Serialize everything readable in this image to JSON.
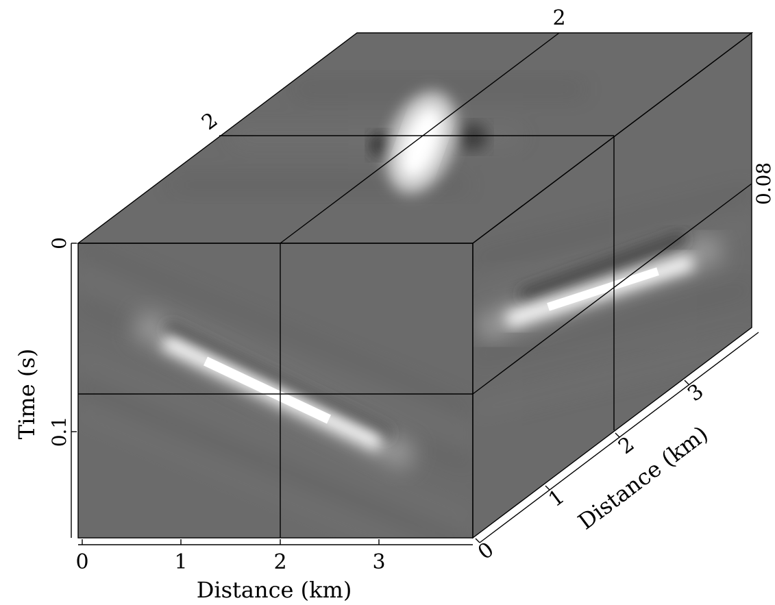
{
  "chart_data": {
    "type": "heatmap",
    "subtype": "3d-cube-slices",
    "colormap": "grayscale",
    "background_color": "#6b6b6b",
    "frame_color": "#000000",
    "axes": {
      "time": {
        "label": "Time (s)",
        "ticks": [
          "0",
          "0.1"
        ],
        "tick_values": [
          0,
          0.1
        ],
        "range": [
          0,
          0.15
        ]
      },
      "distance_front": {
        "label": "Distance (km)",
        "ticks": [
          "0",
          "1",
          "2",
          "3"
        ],
        "tick_values": [
          0,
          1,
          2,
          3
        ],
        "range": [
          0,
          4
        ]
      },
      "distance_depth": {
        "label": "Distance (km)",
        "ticks": [
          "0",
          "1",
          "2",
          "3"
        ],
        "tick_values": [
          0,
          1,
          2,
          3
        ],
        "range": [
          0,
          4
        ]
      }
    },
    "slice_positions": {
      "time_label": "0.08",
      "time_value": 0.08,
      "distance_front_label": "2",
      "distance_front_value": 2,
      "distance_depth_label": "2",
      "distance_depth_value": 2
    },
    "events": [
      {
        "face": "front",
        "description": "dipping event",
        "x_km": [
          0.9,
          3.5
        ],
        "t_s": [
          0.045,
          0.115
        ],
        "peak_amplitude": 1.0
      },
      {
        "face": "side",
        "description": "dipping event",
        "y_km": [
          0.0,
          4.0
        ],
        "t_s": [
          0.09,
          0.02
        ],
        "peak_amplitude": 1.0
      },
      {
        "face": "top",
        "description": "focused energy",
        "x_km": 2.0,
        "y_km": 2.0,
        "peak_amplitude": 1.0
      }
    ]
  }
}
